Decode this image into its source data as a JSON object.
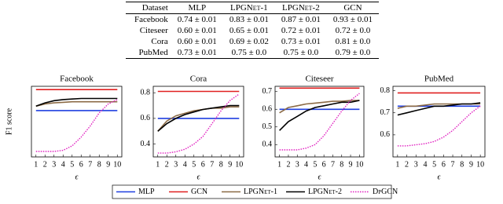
{
  "table": {
    "header": [
      "Dataset",
      "MLP",
      "LPGNet-1",
      "LPGNet-2",
      "GCN"
    ],
    "rows": [
      [
        "Facebook",
        "0.74 ± 0.01",
        "0.83 ± 0.01",
        "0.87 ± 0.01",
        "0.93 ± 0.01"
      ],
      [
        "Citeseer",
        "0.60 ± 0.01",
        "0.65 ± 0.01",
        "0.72 ± 0.01",
        "0.72 ± 0.0"
      ],
      [
        "Cora",
        "0.60 ± 0.01",
        "0.69 ± 0.02",
        "0.73 ± 0.01",
        "0.81 ± 0.0"
      ],
      [
        "PubMed",
        "0.73 ± 0.01",
        "0.75 ± 0.0",
        "0.75 ± 0.0",
        "0.79 ± 0.0"
      ]
    ]
  },
  "chart_data": [
    {
      "type": "line",
      "title": "Facebook",
      "y_label": "F1 score",
      "x_label": "ϵ",
      "x": [
        1,
        2,
        3,
        4,
        5,
        6,
        7,
        8,
        9,
        10
      ],
      "xticks": [
        1,
        2,
        3,
        4,
        5,
        6,
        7,
        8,
        9,
        10
      ],
      "xlim": [
        0.5,
        10.5
      ],
      "ylim": [
        0.32,
        0.96
      ],
      "yticks": [],
      "series": [
        {
          "name": "MLP",
          "color": "#1f3fe0",
          "values": [
            0.74,
            0.74,
            0.74,
            0.74,
            0.74,
            0.74,
            0.74,
            0.74,
            0.74,
            0.74
          ]
        },
        {
          "name": "GCN",
          "color": "#e02020",
          "values": [
            0.93,
            0.93,
            0.93,
            0.93,
            0.93,
            0.93,
            0.93,
            0.93,
            0.93,
            0.93
          ]
        },
        {
          "name": "LPGNet-1",
          "color": "#8b6a45",
          "values": [
            0.78,
            0.8,
            0.81,
            0.815,
            0.82,
            0.82,
            0.82,
            0.82,
            0.82,
            0.82
          ]
        },
        {
          "name": "LPGNet-2",
          "color": "#000000",
          "values": [
            0.78,
            0.81,
            0.83,
            0.84,
            0.845,
            0.85,
            0.85,
            0.85,
            0.85,
            0.85
          ]
        },
        {
          "name": "DpGCN",
          "color": "#e020c0",
          "dashed": true,
          "values": [
            0.37,
            0.37,
            0.37,
            0.38,
            0.42,
            0.5,
            0.6,
            0.72,
            0.8,
            0.84
          ]
        }
      ]
    },
    {
      "type": "line",
      "title": "Cora",
      "x_label": "ϵ",
      "x": [
        1,
        2,
        3,
        4,
        5,
        6,
        7,
        8,
        9,
        10
      ],
      "xticks": [
        1,
        2,
        3,
        4,
        5,
        6,
        7,
        8,
        9,
        10
      ],
      "xlim": [
        0.5,
        10.5
      ],
      "ylim": [
        0.3,
        0.85
      ],
      "yticks": [
        {
          "value": 0.4,
          "label": "0.4"
        },
        {
          "value": 0.6,
          "label": "0.6"
        },
        {
          "value": 0.8,
          "label": "0.8"
        }
      ],
      "series": [
        {
          "name": "MLP",
          "color": "#1f3fe0",
          "values": [
            0.6,
            0.6,
            0.6,
            0.6,
            0.6,
            0.6,
            0.6,
            0.6,
            0.6,
            0.6
          ]
        },
        {
          "name": "GCN",
          "color": "#e02020",
          "values": [
            0.81,
            0.81,
            0.81,
            0.81,
            0.81,
            0.81,
            0.81,
            0.81,
            0.81,
            0.81
          ]
        },
        {
          "name": "LPGNet-1",
          "color": "#8b6a45",
          "values": [
            0.5,
            0.58,
            0.62,
            0.64,
            0.66,
            0.67,
            0.68,
            0.68,
            0.69,
            0.69
          ]
        },
        {
          "name": "LPGNet-2",
          "color": "#000000",
          "values": [
            0.5,
            0.56,
            0.6,
            0.63,
            0.65,
            0.67,
            0.68,
            0.69,
            0.7,
            0.7
          ]
        },
        {
          "name": "DpGCN",
          "color": "#e020c0",
          "dashed": true,
          "values": [
            0.33,
            0.33,
            0.34,
            0.36,
            0.4,
            0.46,
            0.56,
            0.66,
            0.74,
            0.79
          ]
        }
      ]
    },
    {
      "type": "line",
      "title": "Citeseer",
      "x_label": "ϵ",
      "x": [
        1,
        2,
        3,
        4,
        5,
        6,
        7,
        8,
        9,
        10
      ],
      "xticks": [
        1,
        2,
        3,
        4,
        5,
        6,
        7,
        8,
        9,
        10
      ],
      "xlim": [
        0.5,
        10.5
      ],
      "ylim": [
        0.33,
        0.73
      ],
      "yticks": [
        0.4,
        0.5,
        0.6,
        0.7
      ],
      "series": [
        {
          "name": "MLP",
          "color": "#1f3fe0",
          "values": [
            0.6,
            0.6,
            0.6,
            0.6,
            0.6,
            0.6,
            0.6,
            0.6,
            0.6,
            0.6
          ]
        },
        {
          "name": "GCN",
          "color": "#e02020",
          "values": [
            0.72,
            0.72,
            0.72,
            0.72,
            0.72,
            0.72,
            0.72,
            0.72,
            0.72,
            0.72
          ]
        },
        {
          "name": "LPGNet-1",
          "color": "#8b6a45",
          "values": [
            0.58,
            0.61,
            0.62,
            0.63,
            0.635,
            0.64,
            0.645,
            0.645,
            0.65,
            0.65
          ]
        },
        {
          "name": "LPGNet-2",
          "color": "#000000",
          "values": [
            0.48,
            0.53,
            0.56,
            0.59,
            0.61,
            0.62,
            0.63,
            0.64,
            0.64,
            0.65
          ]
        },
        {
          "name": "DpGCN",
          "color": "#e020c0",
          "dashed": true,
          "values": [
            0.37,
            0.37,
            0.37,
            0.38,
            0.4,
            0.45,
            0.52,
            0.59,
            0.65,
            0.69
          ]
        }
      ]
    },
    {
      "type": "line",
      "title": "PubMed",
      "x_label": "ϵ",
      "x": [
        1,
        2,
        3,
        4,
        5,
        6,
        7,
        8,
        9,
        10
      ],
      "xticks": [
        1,
        2,
        3,
        4,
        5,
        6,
        7,
        8,
        9,
        10
      ],
      "xlim": [
        0.5,
        10.5
      ],
      "ylim": [
        0.5,
        0.82
      ],
      "yticks": [
        0.6,
        0.7,
        0.8
      ],
      "series": [
        {
          "name": "MLP",
          "color": "#1f3fe0",
          "values": [
            0.73,
            0.73,
            0.73,
            0.73,
            0.73,
            0.73,
            0.73,
            0.73,
            0.73,
            0.73
          ]
        },
        {
          "name": "GCN",
          "color": "#e02020",
          "values": [
            0.79,
            0.79,
            0.79,
            0.79,
            0.79,
            0.79,
            0.79,
            0.79,
            0.79,
            0.79
          ]
        },
        {
          "name": "LPGNet-1",
          "color": "#8b6a45",
          "values": [
            0.72,
            0.73,
            0.73,
            0.735,
            0.74,
            0.74,
            0.74,
            0.74,
            0.74,
            0.74
          ]
        },
        {
          "name": "LPGNet-2",
          "color": "#000000",
          "values": [
            0.69,
            0.7,
            0.71,
            0.72,
            0.73,
            0.73,
            0.735,
            0.74,
            0.74,
            0.745
          ]
        },
        {
          "name": "DpGCN",
          "color": "#e020c0",
          "dashed": true,
          "values": [
            0.55,
            0.55,
            0.555,
            0.56,
            0.57,
            0.59,
            0.62,
            0.66,
            0.7,
            0.73
          ]
        }
      ]
    }
  ]
}
